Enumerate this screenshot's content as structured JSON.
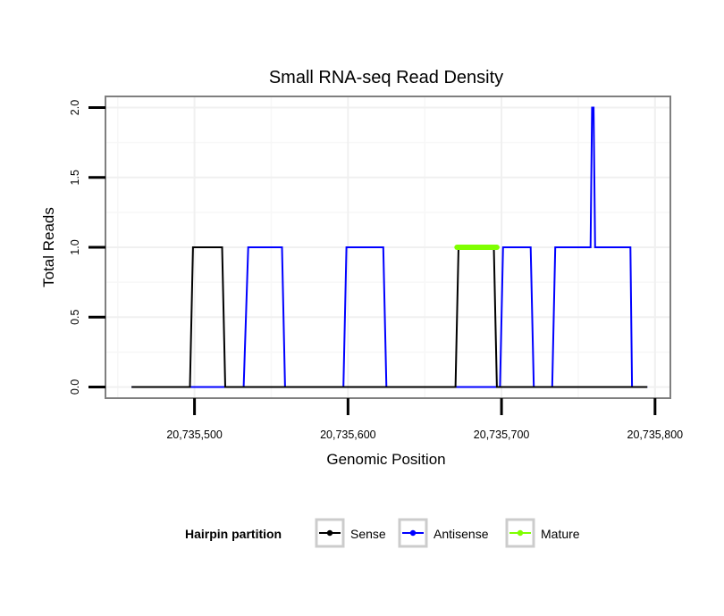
{
  "chart_data": {
    "type": "line",
    "title": "Small RNA-seq Read Density",
    "xlabel": "Genomic Position",
    "ylabel": "Total Reads",
    "xlim": [
      20735442,
      20735810
    ],
    "ylim": [
      -0.08,
      2.08
    ],
    "x_ticks": [
      20735500,
      20735600,
      20735700,
      20735800
    ],
    "x_tick_labels": [
      "20,735,500",
      "20,735,600",
      "20,735,700",
      "20,735,800"
    ],
    "y_ticks": [
      0,
      0.5,
      1,
      1.5,
      2
    ],
    "y_tick_labels": [
      "0.0",
      "0.5",
      "1.0",
      "1.5",
      "2.0"
    ],
    "grid": true,
    "legend": {
      "title": "Hairpin partition",
      "position": "bottom",
      "entries": [
        {
          "name": "Sense",
          "color": "#000000"
        },
        {
          "name": "Antisense",
          "color": "#0000ff"
        },
        {
          "name": "Mature",
          "color": "#7fff00"
        }
      ]
    },
    "series": [
      {
        "name": "Antisense",
        "color": "#0000ff",
        "x": [
          20735459,
          20735532,
          20735535,
          20735557,
          20735559,
          20735597,
          20735599,
          20735623,
          20735625,
          20735699,
          20735701,
          20735719,
          20735721,
          20735733,
          20735735,
          20735758,
          20735759,
          20735760,
          20735761,
          20735784,
          20735785,
          20735795
        ],
        "y": [
          0,
          0,
          1,
          1,
          0,
          0,
          1,
          1,
          0,
          0,
          1,
          1,
          0,
          0,
          1,
          1,
          2,
          2,
          1,
          1,
          0,
          0
        ]
      },
      {
        "name": "Sense",
        "color": "#000000",
        "x": [
          20735459,
          20735497,
          20735499,
          20735518,
          20735520,
          20735670,
          20735672,
          20735695,
          20735697,
          20735795
        ],
        "y": [
          0,
          0,
          1,
          1,
          0,
          0,
          1,
          1,
          0,
          0
        ]
      },
      {
        "name": "Mature",
        "color": "#7fff00",
        "x": [
          20735671,
          20735697
        ],
        "y": [
          1,
          1
        ]
      }
    ]
  }
}
